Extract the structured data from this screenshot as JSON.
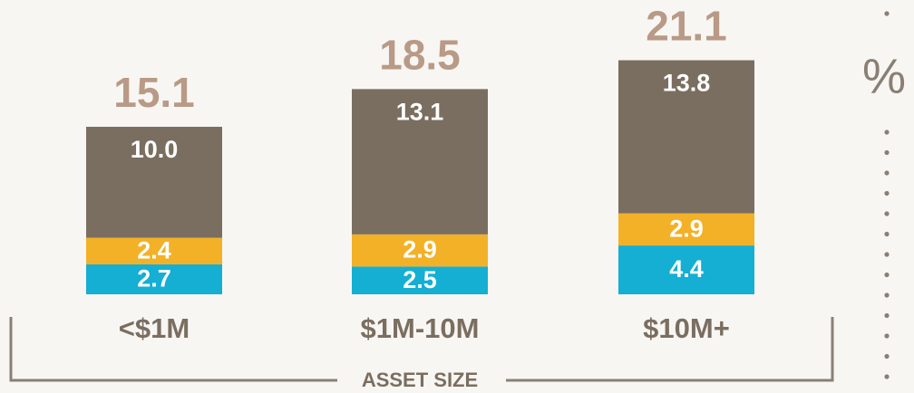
{
  "chart_data": {
    "type": "stacked-bar",
    "categories": [
      "<$1M",
      "$1M-10M",
      "$10M+"
    ],
    "series": [
      {
        "color": "#14afd3",
        "values": [
          2.7,
          2.5,
          4.4
        ]
      },
      {
        "color": "#f2b127",
        "values": [
          2.4,
          2.9,
          2.9
        ]
      },
      {
        "color": "#7a6e60",
        "values": [
          10.0,
          13.1,
          13.8
        ],
        "value_labels": [
          "10.0",
          "13.1",
          "13.8"
        ]
      }
    ],
    "totals": [
      15.1,
      18.5,
      21.1
    ],
    "xlabel": "ASSET SIZE",
    "unit": "%"
  }
}
